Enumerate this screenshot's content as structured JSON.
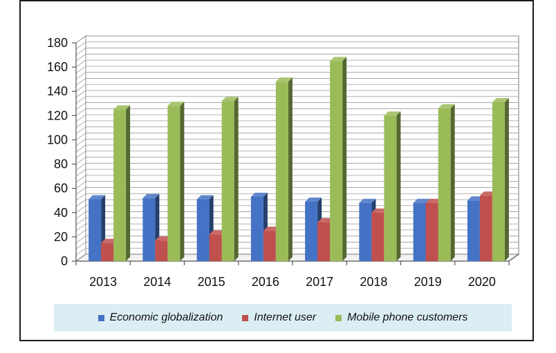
{
  "chart_data": {
    "type": "bar",
    "categories": [
      "2013",
      "2014",
      "2015",
      "2016",
      "2017",
      "2018",
      "2019",
      "2020"
    ],
    "series": [
      {
        "name": "Economic globalization",
        "color": "#4472c4",
        "values": [
          51,
          52,
          51,
          53,
          49,
          48,
          48,
          50
        ]
      },
      {
        "name": "Internet user",
        "color": "#c0504d",
        "values": [
          15,
          17,
          22,
          25,
          32,
          40,
          48,
          54
        ]
      },
      {
        "name": "Mobile phone customers",
        "color": "#9bbb59",
        "values": [
          125,
          128,
          132,
          148,
          165,
          120,
          126,
          131
        ]
      }
    ],
    "ylim": [
      0,
      180
    ],
    "yticks": [
      0,
      20,
      40,
      60,
      80,
      100,
      120,
      140,
      160,
      180
    ],
    "grid": true,
    "legend_position": "bottom",
    "xlabel": "",
    "ylabel": "",
    "title": ""
  }
}
